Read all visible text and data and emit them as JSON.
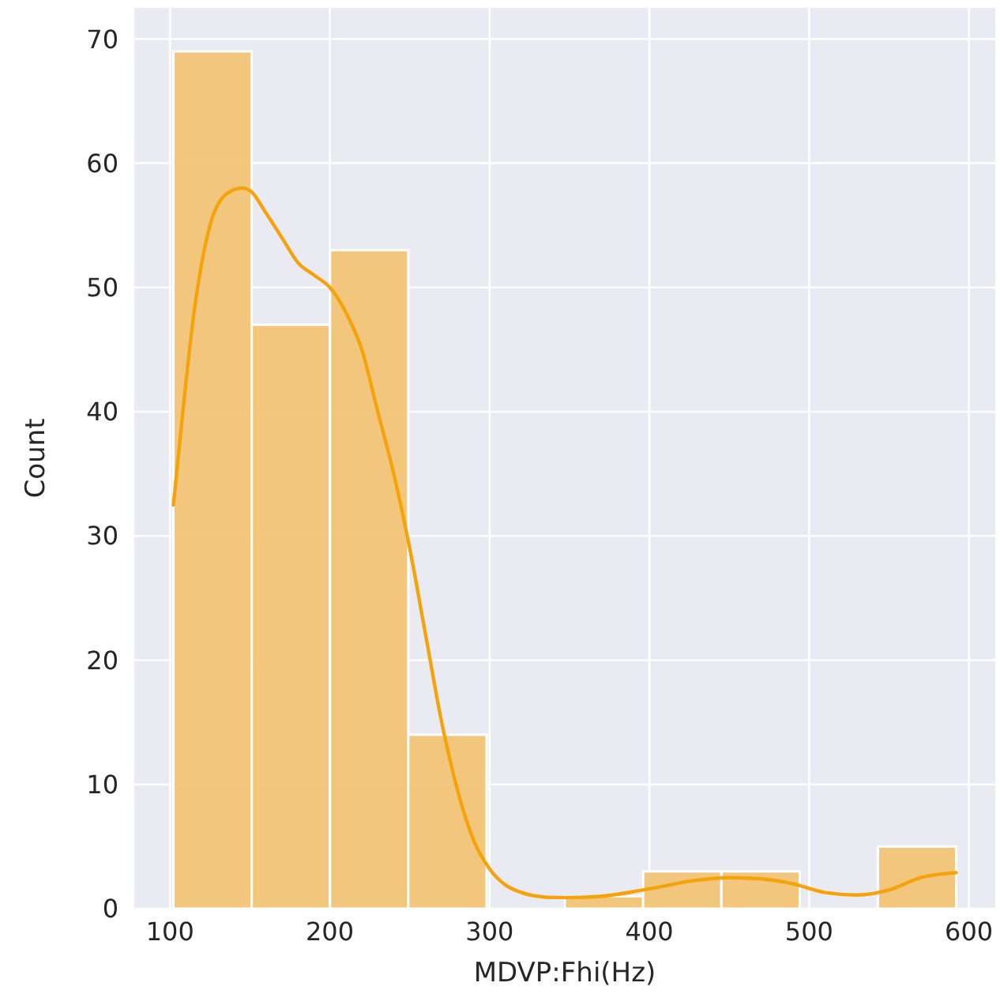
{
  "chart_data": {
    "type": "histogram",
    "xlabel": "MDVP:Fhi(Hz)",
    "ylabel": "Count",
    "bins": [
      102.1,
      151.1,
      200.1,
      249.1,
      298.1,
      347.1,
      396.1,
      445.1,
      494.1,
      543.1,
      592.0
    ],
    "values": [
      69,
      47,
      53,
      14,
      0,
      1,
      3,
      3,
      0,
      5
    ],
    "color": "#f2c476",
    "series": [
      {
        "type": "line",
        "color": "#f5a30b",
        "x": [
          102.1,
          108,
          115,
          125,
          135,
          145,
          150,
          160,
          170,
          180,
          190,
          200,
          210,
          220,
          230,
          240,
          250,
          260,
          270,
          280,
          290,
          300,
          310,
          320,
          330,
          340,
          350,
          370,
          400,
          430,
          450,
          470,
          490,
          510,
          530,
          550,
          570,
          592
        ],
        "values": [
          32.5,
          40,
          48,
          55,
          57.5,
          58,
          57.8,
          56,
          54,
          52,
          51,
          50,
          48,
          45,
          40,
          35,
          29,
          22,
          15,
          9.5,
          5.5,
          3.2,
          1.9,
          1.3,
          1.0,
          0.9,
          0.9,
          1.0,
          1.6,
          2.3,
          2.5,
          2.4,
          2.0,
          1.3,
          1.1,
          1.5,
          2.5,
          2.9
        ]
      }
    ],
    "xlim": [
      77.6,
      616.5
    ],
    "ylim": [
      0,
      72.5
    ],
    "xticks": [
      100,
      200,
      300,
      400,
      500,
      600
    ],
    "yticks": [
      0,
      10,
      20,
      30,
      40,
      50,
      60,
      70
    ],
    "grid": true
  }
}
